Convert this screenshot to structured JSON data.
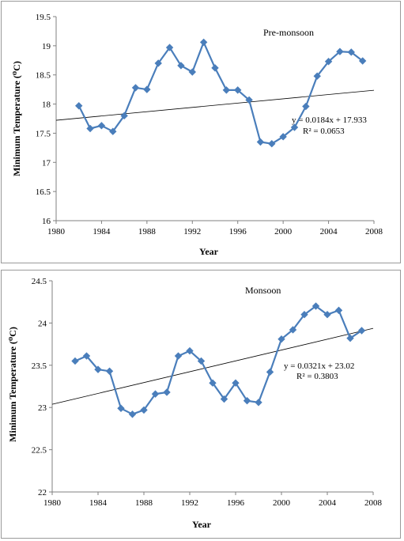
{
  "chart_data": [
    {
      "type": "line",
      "title": "Pre-monsoon",
      "xlabel": "Year",
      "ylabel": "Minimum Temperature (⁰C)",
      "xlim": [
        1980,
        2008
      ],
      "ylim": [
        16,
        19.5
      ],
      "xticks": [
        1980,
        1984,
        1988,
        1992,
        1996,
        2000,
        2004,
        2008
      ],
      "yticks": [
        16,
        16.5,
        17,
        17.5,
        18,
        18.5,
        19,
        19.5
      ],
      "grid": false,
      "color": "#4a7ebb",
      "series": [
        {
          "x": [
            1982,
            1983,
            1984,
            1985,
            1986,
            1987,
            1988,
            1989,
            1990,
            1991,
            1992,
            1993,
            1994,
            1995,
            1996,
            1997,
            1998,
            1999,
            2000,
            2001,
            2002,
            2003,
            2004,
            2005,
            2006,
            2007
          ],
          "y": [
            17.97,
            17.58,
            17.63,
            17.53,
            17.8,
            18.28,
            18.25,
            18.7,
            18.97,
            18.66,
            18.55,
            19.06,
            18.62,
            18.24,
            18.24,
            18.07,
            17.35,
            17.32,
            17.44,
            17.6,
            17.96,
            18.48,
            18.73,
            18.9,
            18.89,
            18.74
          ]
        }
      ],
      "trendline": {
        "slope": 0.0184,
        "intercept": -18.71,
        "equation": "y = 0.0184x + 17.933",
        "r2": "R² = 0.0653"
      }
    },
    {
      "type": "line",
      "title": "Monsoon",
      "xlabel": "Year",
      "ylabel": "Minimum Temperature (⁰C)",
      "xlim": [
        1980,
        2008
      ],
      "ylim": [
        22,
        24.5
      ],
      "xticks": [
        1980,
        1984,
        1988,
        1992,
        1996,
        2000,
        2004,
        2008
      ],
      "yticks": [
        22,
        22.5,
        23,
        23.5,
        24,
        24.5
      ],
      "grid": false,
      "color": "#4a7ebb",
      "series": [
        {
          "x": [
            1982,
            1983,
            1984,
            1985,
            1986,
            1987,
            1988,
            1989,
            1990,
            1991,
            1992,
            1993,
            1994,
            1995,
            1996,
            1997,
            1998,
            1999,
            2000,
            2001,
            2002,
            2003,
            2004,
            2005,
            2006,
            2007
          ],
          "y": [
            23.55,
            23.61,
            23.45,
            23.43,
            22.99,
            22.92,
            22.97,
            23.16,
            23.18,
            23.61,
            23.67,
            23.55,
            23.29,
            23.1,
            23.29,
            23.08,
            23.06,
            23.42,
            23.81,
            23.92,
            24.1,
            24.2,
            24.1,
            24.15,
            23.82,
            23.91
          ]
        }
      ],
      "trendline": {
        "slope": 0.0321,
        "intercept": -40.52,
        "equation": "y = 0.0321x + 23.02",
        "r2": "R² = 0.3803"
      }
    }
  ]
}
